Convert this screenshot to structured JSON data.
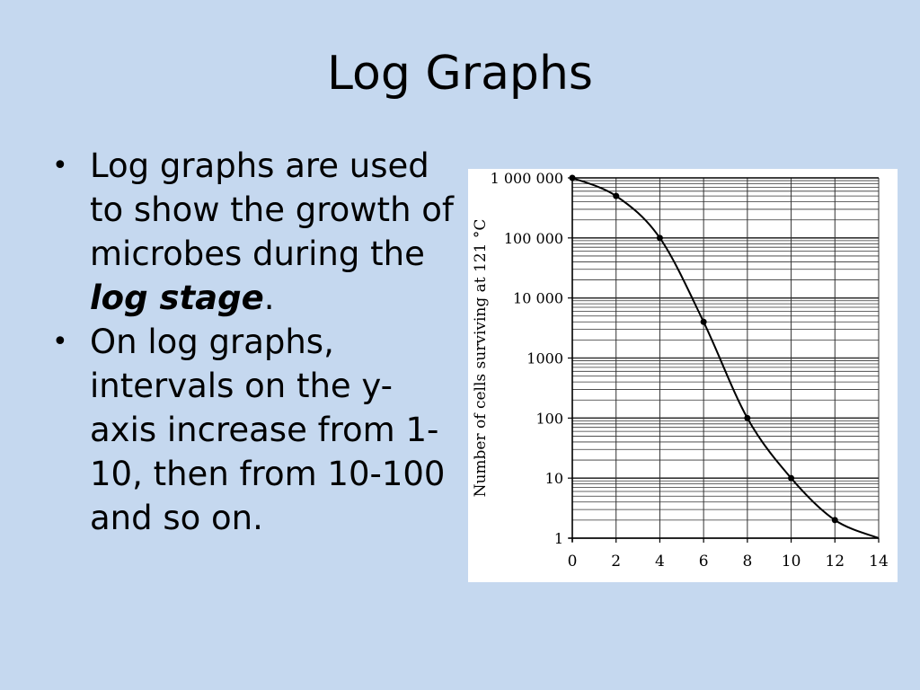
{
  "slide": {
    "title": "Log Graphs",
    "bullets": [
      {
        "before": "Log graphs are used to show the growth of microbes during the ",
        "emphasis": "log stage",
        "after": "."
      },
      {
        "before": "On log graphs, intervals on the y-axis increase from 1-10, then from 10-100 and so on.",
        "emphasis": "",
        "after": ""
      }
    ],
    "bullet_symbol": "•"
  },
  "chart_data": {
    "type": "line",
    "title": "",
    "xlabel": "",
    "ylabel": "Number of cells surviving at 121 °C",
    "y_scale": "log",
    "xlim": [
      0,
      14
    ],
    "ylim": [
      1,
      1000000
    ],
    "x_ticks": [
      "0",
      "2",
      "4",
      "6",
      "8",
      "10",
      "12",
      "14"
    ],
    "y_ticks": [
      "1",
      "10",
      "100",
      "1000",
      "10 000",
      "100 000",
      "1 000 000"
    ],
    "grid": true,
    "series": [
      {
        "name": "",
        "points": [
          {
            "x": 0,
            "y": 1000000
          },
          {
            "x": 2,
            "y": 500000
          },
          {
            "x": 4,
            "y": 100000
          },
          {
            "x": 6,
            "y": 4000
          },
          {
            "x": 8,
            "y": 100
          },
          {
            "x": 10,
            "y": 10
          },
          {
            "x": 12,
            "y": 2
          }
        ],
        "curve_end": {
          "x": 14,
          "y": 1
        },
        "color": "#000000"
      }
    ]
  }
}
